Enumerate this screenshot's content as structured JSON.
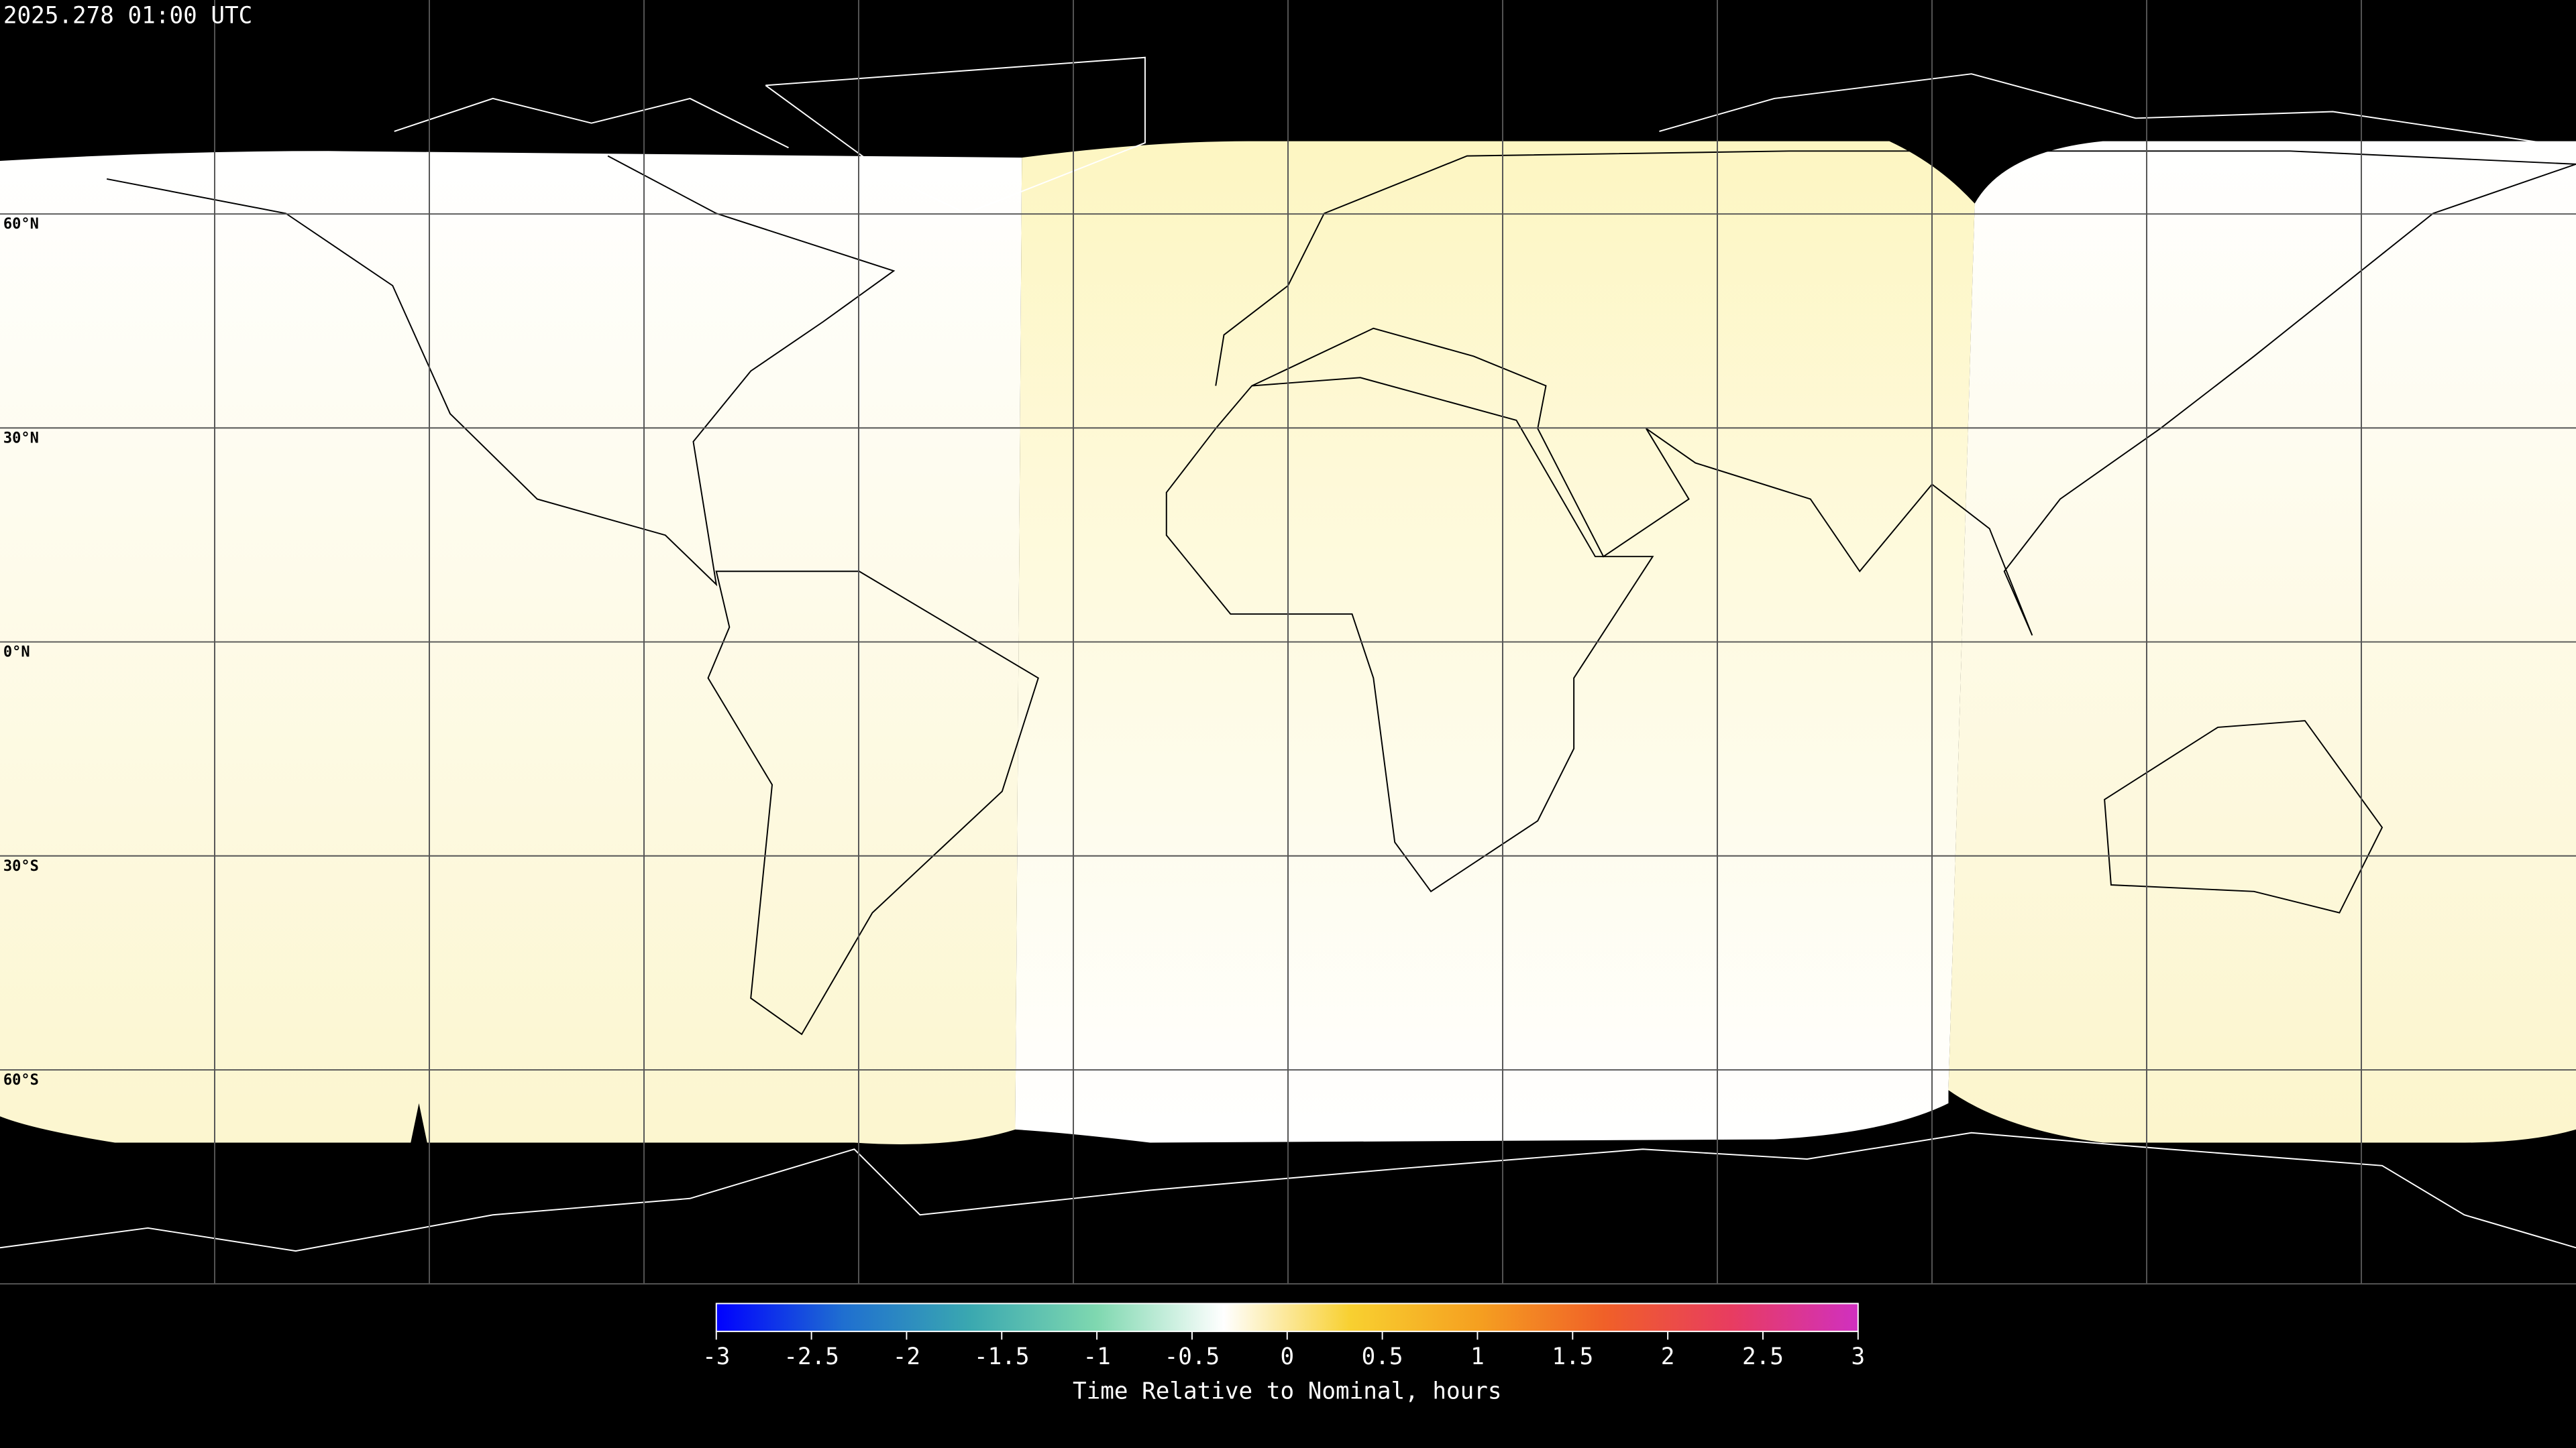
{
  "title": "2025.278 01:00 UTC",
  "lat_labels": [
    "60°N",
    "30°N",
    "0°N",
    "30°S",
    "60°S"
  ],
  "colorbar": {
    "label": "Time Relative to Nominal, hours",
    "lim": [
      -3,
      3
    ],
    "ticks": [
      -3,
      -2.5,
      -2,
      -1.5,
      -1,
      -0.5,
      0,
      0.5,
      1,
      1.5,
      2,
      2.5,
      3
    ],
    "colors": [
      "#0000ff",
      "#1f6fd0",
      "#3aa8b0",
      "#7fd8b0",
      "#ffffff",
      "#f8d030",
      "#f5a020",
      "#f06028",
      "#e83c60",
      "#d030c0"
    ]
  }
}
